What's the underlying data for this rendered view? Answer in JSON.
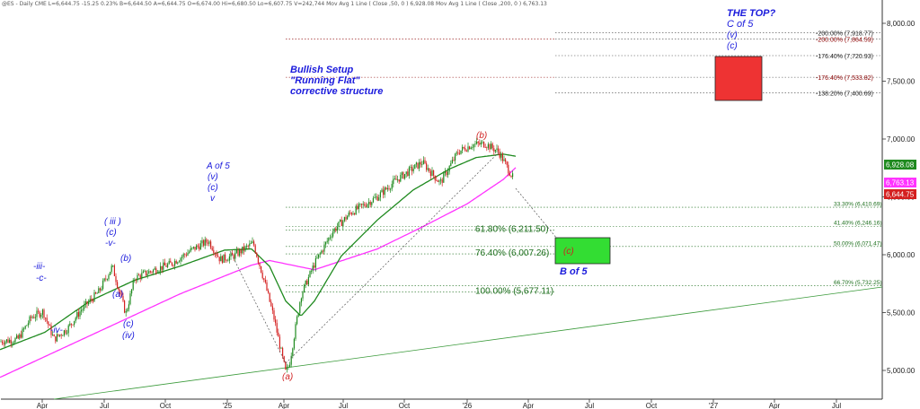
{
  "header": {
    "text": "@ES - Daily  CME  L=6,644.75  -15.25  0.23%  B=6,644.50  A=6,644.75  O=6,674.00  Hi=6,680.50  Lo=6,607.75  V=242,744  Mov Avg 1 Line ( Close ,50, 0 )  6,928.08  Mov Avg 1 Line ( Close ,200, 0 )  6,763.13"
  },
  "annotations": {
    "the_top": [
      "THE TOP?",
      "C of 5",
      "(v)",
      "(c)"
    ],
    "bullish": [
      "Bullish Setup",
      "\"Running Flat\"",
      "corrective structure"
    ],
    "b_of_5": "B of 5",
    "c_box": "(c)",
    "waves": {
      "iii": "-iii-",
      "c1": "-c-",
      "iv": "-iv-",
      "iii2": "( iii )",
      "c2": "(c)",
      "v2": "-v-",
      "b_small": "(b)",
      "a_small": "(a)",
      "c_iv1": "(c)",
      "c_iv2": "(iv)",
      "a5_1": "A of 5",
      "a5_2": "(v)",
      "a5_3": "(c)",
      "a5_4": "v",
      "b_red": "(b)",
      "a_red": "(a)"
    }
  },
  "colors": {
    "up": "#1e8a1e",
    "down": "#d42020",
    "ma50": "#1f8a1f",
    "ma200": "#ff33ff",
    "price_badge": "#d42020",
    "ma50_badge": "#1f8a1f",
    "ma200_badge": "#ff33ff",
    "fib_line": "#1c6e1c",
    "blue_text": "#1a1adc",
    "red_box": "#ee3333",
    "green_box": "#33dd33"
  },
  "chart_data": {
    "type": "candlestick",
    "ylim": [
      4800,
      8300
    ],
    "y_ticks": [
      "5,000.00",
      "5,500.00",
      "6,000.00",
      "6,500.00",
      "7,000.00",
      "7,500.00",
      "8,000.00"
    ],
    "x_ticks": [
      "Apr",
      "Jul",
      "Oct",
      "'25",
      "Apr",
      "Jul",
      "Oct",
      "'26",
      "Apr",
      "Jul",
      "Oct",
      "'27",
      "Apr",
      "Jul"
    ],
    "price_path": [
      [
        0,
        5250
      ],
      [
        20,
        5270
      ],
      [
        35,
        5460
      ],
      [
        48,
        5510
      ],
      [
        60,
        5270
      ],
      [
        75,
        5360
      ],
      [
        90,
        5520
      ],
      [
        110,
        5680
      ],
      [
        125,
        5900
      ],
      [
        140,
        5490
      ],
      [
        150,
        5800
      ],
      [
        175,
        5880
      ],
      [
        190,
        5920
      ],
      [
        215,
        6050
      ],
      [
        232,
        6120
      ],
      [
        245,
        5960
      ],
      [
        260,
        5990
      ],
      [
        282,
        6100
      ],
      [
        295,
        5750
      ],
      [
        305,
        5450
      ],
      [
        318,
        4980
      ],
      [
        322,
        5050
      ],
      [
        335,
        5650
      ],
      [
        350,
        5920
      ],
      [
        370,
        6200
      ],
      [
        390,
        6360
      ],
      [
        420,
        6500
      ],
      [
        440,
        6640
      ],
      [
        470,
        6800
      ],
      [
        490,
        6620
      ],
      [
        510,
        6890
      ],
      [
        525,
        6950
      ],
      [
        540,
        6960
      ],
      [
        555,
        6890
      ],
      [
        572,
        6650
      ]
    ],
    "ma50_path": [
      [
        0,
        5180
      ],
      [
        50,
        5330
      ],
      [
        100,
        5600
      ],
      [
        150,
        5780
      ],
      [
        200,
        5900
      ],
      [
        250,
        6040
      ],
      [
        280,
        6050
      ],
      [
        300,
        5900
      ],
      [
        318,
        5600
      ],
      [
        335,
        5470
      ],
      [
        350,
        5600
      ],
      [
        380,
        5990
      ],
      [
        420,
        6300
      ],
      [
        460,
        6560
      ],
      [
        500,
        6740
      ],
      [
        530,
        6840
      ],
      [
        560,
        6870
      ],
      [
        575,
        6850
      ]
    ],
    "ma200_path": [
      [
        0,
        4940
      ],
      [
        100,
        5300
      ],
      [
        200,
        5660
      ],
      [
        280,
        5910
      ],
      [
        300,
        5950
      ],
      [
        350,
        5870
      ],
      [
        420,
        6050
      ],
      [
        470,
        6240
      ],
      [
        520,
        6440
      ],
      [
        560,
        6650
      ],
      [
        575,
        6760
      ]
    ],
    "last_price": {
      "label": "6,644.75",
      "value": 6644.75
    },
    "ma50_last": {
      "label": "6,928.08",
      "value": 6928.08
    },
    "ma200_last": {
      "label": "6,763.13",
      "value": 6763.13
    },
    "upper_fibs": [
      {
        "label": "-200.00% (7,918.77)",
        "value": 7918.77,
        "color": "#222"
      },
      {
        "label": "-200.00% (7,864.59)",
        "value": 7864.59,
        "color": "#8b0000"
      },
      {
        "label": "-176.40% (7,720.93)",
        "value": 7720.93,
        "color": "#222"
      },
      {
        "label": "-176.40% (7,533.82)",
        "value": 7533.82,
        "color": "#8b0000"
      },
      {
        "label": "-138.20% (7,400.69)",
        "value": 7400.69,
        "color": "#222"
      }
    ],
    "lower_fibs_right": [
      {
        "label": "33.30% (6,410.69)",
        "value": 6410.69
      },
      {
        "label": "41.40% (6,246.16)",
        "value": 6246.16
      },
      {
        "label": "50.00% (6,071.47)",
        "value": 6071.47
      },
      {
        "label": "66.70% (5,732.25)",
        "value": 5732.25
      }
    ],
    "lower_fibs_left": [
      {
        "label": "61.80% (6,211.50)",
        "value": 6211.5
      },
      {
        "label": "76.40% (6,007.26)",
        "value": 6007.26
      },
      {
        "label": "100.00% (5,677.11)",
        "value": 5677.11
      }
    ]
  }
}
